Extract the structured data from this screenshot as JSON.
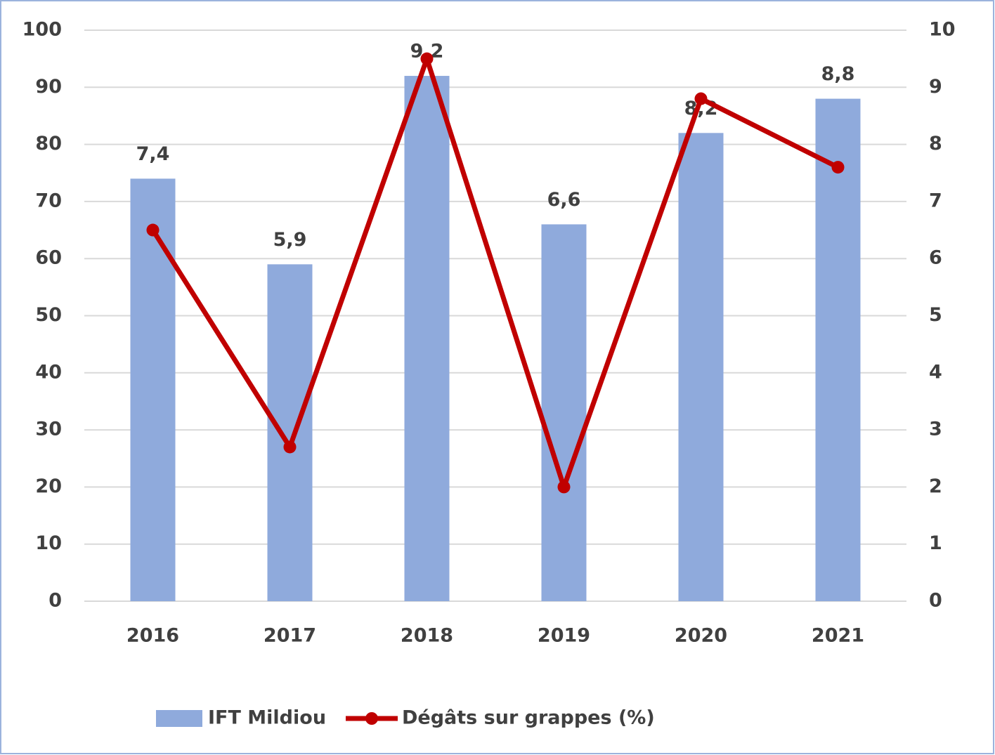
{
  "chart_data": {
    "type": "bar_line",
    "categories": [
      "2016",
      "2017",
      "2018",
      "2019",
      "2020",
      "2021"
    ],
    "series": [
      {
        "name": "IFT Mildiou",
        "type": "bar",
        "axis": "y2",
        "color": "#8faadc",
        "values": [
          7.4,
          5.9,
          9.2,
          6.6,
          8.2,
          8.8
        ],
        "value_labels": [
          "7,4",
          "5,9",
          "9,2",
          "6,6",
          "8,2",
          "8,8"
        ]
      },
      {
        "name": "Dégâts sur grappes (%)",
        "type": "line",
        "axis": "y",
        "color": "#c00000",
        "values": [
          65,
          27,
          95,
          20,
          88,
          76
        ]
      }
    ],
    "ylim": [
      0,
      100
    ],
    "yticks": [
      0,
      10,
      20,
      30,
      40,
      50,
      60,
      70,
      80,
      90,
      100
    ],
    "y2lim": [
      0,
      10
    ],
    "y2ticks": [
      0,
      1,
      2,
      3,
      4,
      5,
      6,
      7,
      8,
      9,
      10
    ],
    "grid": true,
    "legend": "bottom"
  }
}
